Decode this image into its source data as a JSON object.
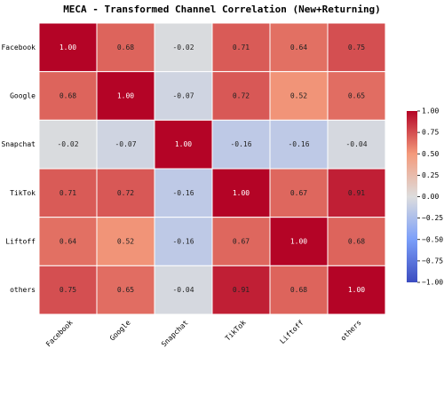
{
  "chart_data": {
    "type": "heatmap",
    "title": "MECA - Transformed Channel Correlation (New+Returning)",
    "x_categories": [
      "Facebook",
      "Google",
      "Snapchat",
      "TikTok",
      "Liftoff",
      "others"
    ],
    "y_categories": [
      "Facebook",
      "Google",
      "Snapchat",
      "TikTok",
      "Liftoff",
      "others"
    ],
    "values": [
      [
        1.0,
        0.68,
        -0.02,
        0.71,
        0.64,
        0.75
      ],
      [
        0.68,
        1.0,
        -0.07,
        0.72,
        0.52,
        0.65
      ],
      [
        -0.02,
        -0.07,
        1.0,
        -0.16,
        -0.16,
        -0.04
      ],
      [
        0.71,
        0.72,
        -0.16,
        1.0,
        0.67,
        0.91
      ],
      [
        0.64,
        0.52,
        -0.16,
        0.67,
        1.0,
        0.68
      ],
      [
        0.75,
        0.65,
        -0.04,
        0.91,
        0.68,
        1.0
      ]
    ],
    "value_labels": [
      [
        "1.00",
        "0.68",
        "-0.02",
        "0.71",
        "0.64",
        "0.75"
      ],
      [
        "0.68",
        "1.00",
        "-0.07",
        "0.72",
        "0.52",
        "0.65"
      ],
      [
        "-0.02",
        "-0.07",
        "1.00",
        "-0.16",
        "-0.16",
        "-0.04"
      ],
      [
        "0.71",
        "0.72",
        "-0.16",
        "1.00",
        "0.67",
        "0.91"
      ],
      [
        "0.64",
        "0.52",
        "-0.16",
        "0.67",
        "1.00",
        "0.68"
      ],
      [
        "0.75",
        "0.65",
        "-0.04",
        "0.91",
        "0.68",
        "1.00"
      ]
    ],
    "zlim": [
      -1,
      1
    ],
    "zticks": [
      {
        "value": 1,
        "label": "1.00"
      },
      {
        "value": 0.75,
        "label": "0.75"
      },
      {
        "value": 0.5,
        "label": "0.50"
      },
      {
        "value": 0.25,
        "label": "0.25"
      },
      {
        "value": 0,
        "label": "0.00"
      },
      {
        "value": -0.25,
        "label": "−0.25"
      },
      {
        "value": -0.5,
        "label": "−0.50"
      },
      {
        "value": -0.75,
        "label": "−0.75"
      },
      {
        "value": -1,
        "label": "−1.00"
      }
    ],
    "colormap": [
      "#3b4cc0",
      "#7b9ff9",
      "#dddddd",
      "#f49a7b",
      "#b40426"
    ]
  }
}
